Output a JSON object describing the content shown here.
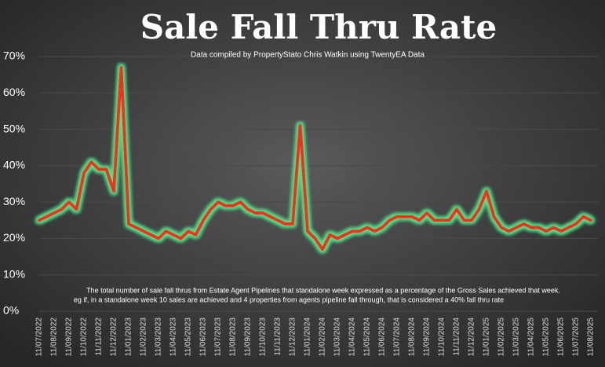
{
  "chart_data": {
    "type": "line",
    "title": "Sale Fall Thru Rate",
    "subtitle": "Data compiled by PropertyStato Chris Watkin using TwentyEA Data",
    "note": [
      "The total number of sale fall thrus from Estate Agent Pipelines that standalone week expressed as a percentage of the Gross Sales achieved that week.",
      "eg if, in a standalone week 10 sales are achieved and 4 properties from agents pipeline fall through, that is considered a 40%  fall thru rate"
    ],
    "categories": [
      "11/07/2022",
      null,
      "11/08/2022",
      null,
      "11/09/2022",
      null,
      "11/10/2022",
      null,
      "11/11/2022",
      null,
      "11/12/2022",
      null,
      "11/01/2023",
      null,
      "11/02/2023",
      null,
      "11/03/2023",
      null,
      "11/04/2023",
      null,
      "11/05/2023",
      null,
      "11/06/2023",
      null,
      "11/07/2023",
      null,
      "11/08/2023",
      null,
      "11/09/2023",
      null,
      "11/10/2023",
      null,
      "11/11/2023",
      null,
      "11/12/2023",
      null,
      "11/01/2024",
      null,
      "11/02/2024",
      null,
      "11/03/2024",
      null,
      "11/04/2024",
      null,
      "11/05/2024",
      null,
      "11/06/2024",
      null,
      "11/07/2024",
      null,
      "11/08/2024",
      null,
      "11/09/2024",
      null,
      "11/10/2024",
      null,
      "11/11/2024",
      null,
      "11/12/2024",
      null,
      "11/01/2025",
      null,
      "11/02/2025",
      null,
      "11/03/2025",
      null,
      "11/04/2025",
      null,
      "11/05/2025",
      null,
      "11/06/2025",
      null,
      "11/07/2025",
      null,
      "11/08/2025",
      null
    ],
    "values": [
      25,
      26,
      27,
      28,
      30,
      28,
      38,
      41,
      39,
      39,
      33,
      67,
      24,
      23,
      22,
      21,
      20,
      22,
      21,
      20,
      22,
      21,
      25,
      28,
      30,
      29,
      29,
      30,
      28,
      27,
      27,
      26,
      25,
      24,
      24,
      51,
      22,
      20,
      17,
      21,
      20,
      21,
      22,
      22,
      23,
      22,
      23,
      25,
      26,
      26,
      26,
      25,
      27,
      25,
      25,
      25,
      28,
      25,
      25,
      28,
      33,
      26,
      23,
      22,
      23,
      24,
      23,
      23,
      22,
      23,
      22,
      23,
      24,
      26,
      25,
      null
    ],
    "color": "#f0301e",
    "glow": "#4ee08a",
    "ylim": [
      0,
      70
    ],
    "yticks": [
      {
        "value": 0,
        "label": "0%"
      },
      {
        "value": 10,
        "label": "10%"
      },
      {
        "value": 20,
        "label": "20%"
      },
      {
        "value": 30,
        "label": "30%"
      },
      {
        "value": 40,
        "label": "40%"
      },
      {
        "value": 50,
        "label": "50%"
      },
      {
        "value": 60,
        "label": "60%"
      },
      {
        "value": 70,
        "label": "70%"
      }
    ],
    "grid": true
  }
}
